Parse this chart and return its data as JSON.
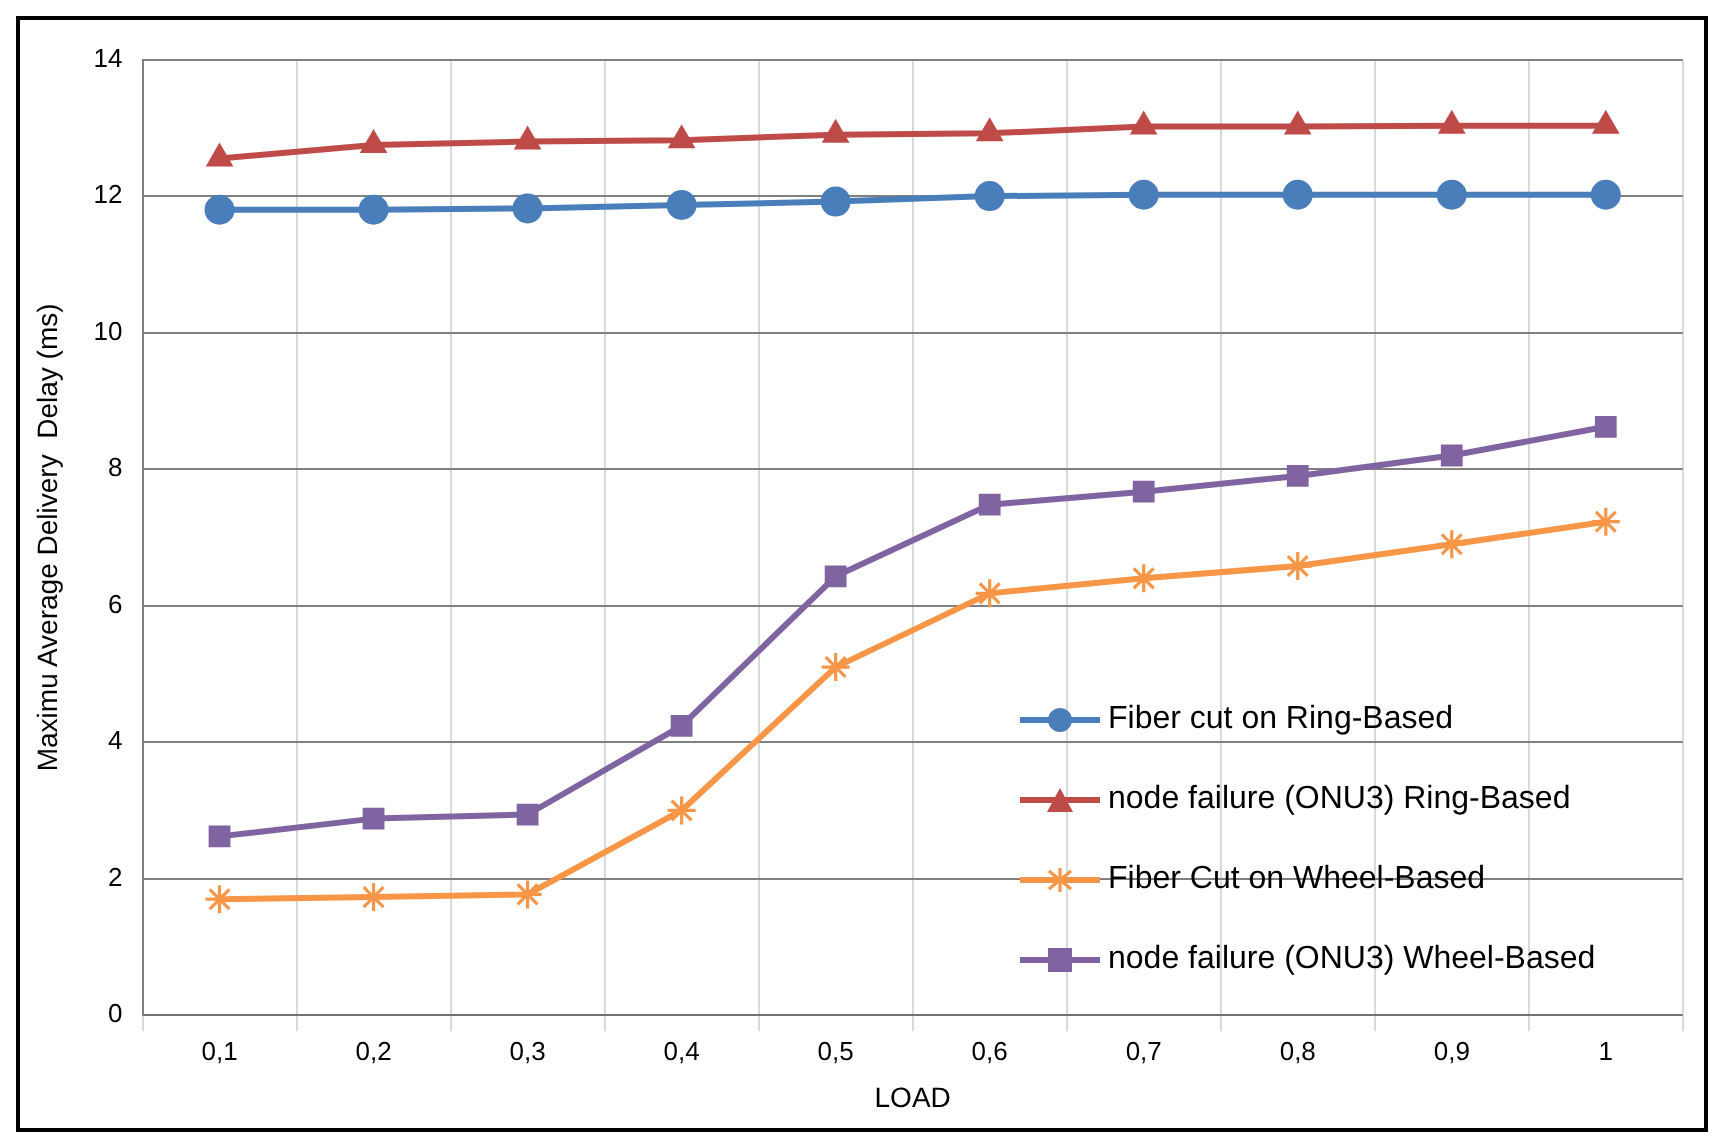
{
  "chart_data": {
    "type": "line",
    "xlabel": "LOAD",
    "ylabel": "Maximu Average Delivery  Delay (ms)",
    "categories": [
      "0,1",
      "0,2",
      "0,3",
      "0,4",
      "0,5",
      "0,6",
      "0,7",
      "0,8",
      "0,9",
      "1"
    ],
    "ylim": [
      0,
      14
    ],
    "yticks": [
      0,
      2,
      4,
      6,
      8,
      10,
      12,
      14
    ],
    "grid": true,
    "legend": "right",
    "line_style": "solid",
    "series": [
      {
        "name": "Fiber cut on Ring-Based",
        "color": "#4a7ebb",
        "marker": "circle",
        "values": [
          11.8,
          11.8,
          11.82,
          11.87,
          11.92,
          12.0,
          12.02,
          12.02,
          12.02,
          12.02
        ]
      },
      {
        "name": "node failure (ONU3) Ring-Based",
        "color": "#be4b48",
        "marker": "triangle",
        "values": [
          12.55,
          12.75,
          12.8,
          12.82,
          12.9,
          12.92,
          13.02,
          13.02,
          13.03,
          13.03
        ]
      },
      {
        "name": "Fiber Cut on Wheel-Based",
        "color": "#f79646",
        "marker": "cross",
        "values": [
          1.7,
          1.73,
          1.77,
          3.0,
          5.1,
          6.18,
          6.4,
          6.58,
          6.9,
          7.23
        ]
      },
      {
        "name": "node failure (ONU3) Wheel-Based",
        "color": "#8064a2",
        "marker": "square",
        "values": [
          2.62,
          2.88,
          2.94,
          4.24,
          6.43,
          7.48,
          7.67,
          7.9,
          8.2,
          8.62
        ]
      }
    ]
  }
}
